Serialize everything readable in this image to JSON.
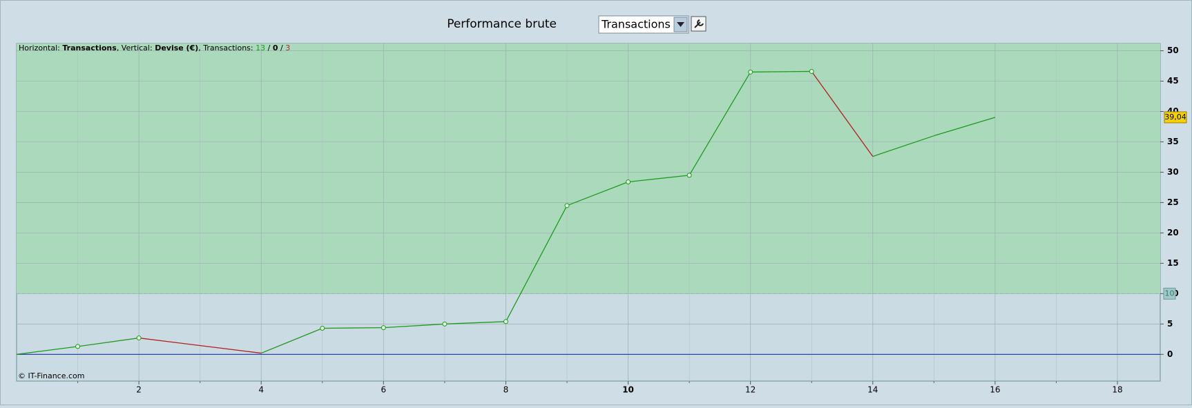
{
  "chart_data": {
    "type": "line",
    "title": "Performance brute",
    "selector": "Transactions",
    "info": [
      "Horizontal: ",
      "Transactions",
      ", Vertical: ",
      "Devise (€)",
      ", Transactions: ",
      "13",
      " / ",
      "0",
      " / ",
      "3"
    ],
    "copyright": "© IT-Finance.com",
    "x": [
      0,
      1,
      2,
      4,
      5,
      6,
      7,
      8,
      9,
      10,
      11,
      12,
      13,
      14,
      15,
      16
    ],
    "values": [
      0,
      1.3,
      2.7,
      0.2,
      4.3,
      4.4,
      5.0,
      5.4,
      24.5,
      28.4,
      29.5,
      46.5,
      46.6,
      32.6,
      36.0,
      39.04
    ],
    "markers": [
      false,
      true,
      true,
      false,
      true,
      true,
      true,
      true,
      true,
      true,
      true,
      true,
      true,
      false,
      false,
      false
    ],
    "rise_color": "#1f9a1f",
    "fall_color": "#b02020",
    "last_label": "39,04",
    "threshold": 10,
    "xlim": [
      0,
      18.7
    ],
    "ylim": [
      -4.4,
      51.2
    ],
    "xticks": [
      2,
      4,
      6,
      8,
      10,
      12,
      14,
      16,
      18
    ],
    "bold_xticks": [
      10
    ],
    "xminor": [
      1,
      3,
      5,
      7,
      9,
      11,
      13,
      15,
      17
    ],
    "yticks": [
      0,
      5,
      10,
      15,
      20,
      25,
      30,
      35,
      40,
      45,
      50
    ],
    "grid": true
  }
}
